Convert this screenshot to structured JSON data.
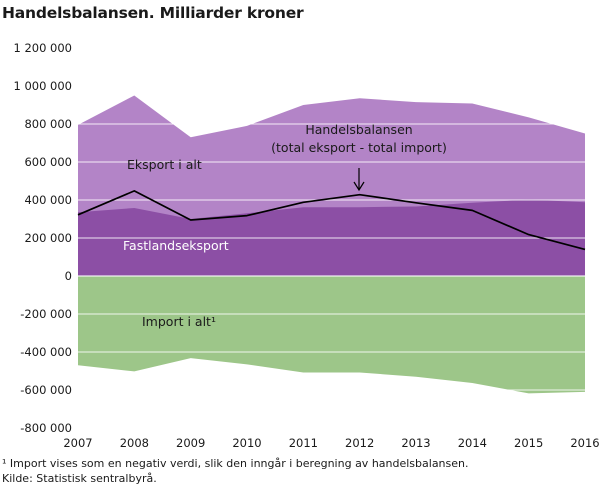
{
  "chart_data": {
    "type": "area",
    "title": "Handelsbalansen. Milliarder kroner",
    "x": [
      "2007",
      "2008",
      "2009",
      "2010",
      "2011",
      "2012",
      "2013",
      "2014",
      "2015",
      "2016"
    ],
    "ylim": [
      -800000,
      1200000
    ],
    "yticks": [
      1200000,
      1000000,
      800000,
      600000,
      400000,
      200000,
      0,
      -200000,
      -400000,
      -600000,
      -800000
    ],
    "ytick_labels": [
      "1 200 000",
      "1 000 000",
      "800 000",
      "600 000",
      "400 000",
      "200 000",
      "0",
      "-200 000",
      "-400 000",
      "-600 000",
      "-800 000"
    ],
    "grid": true,
    "series": [
      {
        "name": "Eksport i alt",
        "kind": "area",
        "color": "#b384c7",
        "values": [
          795000,
          950000,
          730000,
          790000,
          900000,
          935000,
          915000,
          908000,
          835000,
          750000
        ]
      },
      {
        "name": "Fastlandseksport",
        "kind": "area",
        "color": "#8c4fa5",
        "values": [
          335000,
          358000,
          300000,
          330000,
          362000,
          362000,
          366000,
          385000,
          402000,
          388000
        ]
      },
      {
        "name": "Import i alt¹",
        "kind": "area",
        "color": "#9dc689",
        "values": [
          -470000,
          -502000,
          -432000,
          -465000,
          -508000,
          -508000,
          -530000,
          -563000,
          -618000,
          -610000
        ]
      },
      {
        "name": "Handelsbalansen (total eksport - total import)",
        "kind": "line",
        "color": "#000000",
        "values": [
          322000,
          448000,
          295000,
          318000,
          388000,
          428000,
          385000,
          345000,
          218000,
          140000
        ]
      }
    ],
    "annotations": {
      "eksport": "Eksport  i alt",
      "handelsbalansen_line1": "Handelsbalansen",
      "handelsbalansen_line2": "(total eksport - total import)",
      "fastland": "Fastlandseksport",
      "import": "Import i alt¹"
    }
  },
  "footnote": "¹ Import vises som en negativ verdi, slik den inngår i beregning av handelsbalansen.",
  "source": "Kilde: Statistisk sentralbyrå."
}
